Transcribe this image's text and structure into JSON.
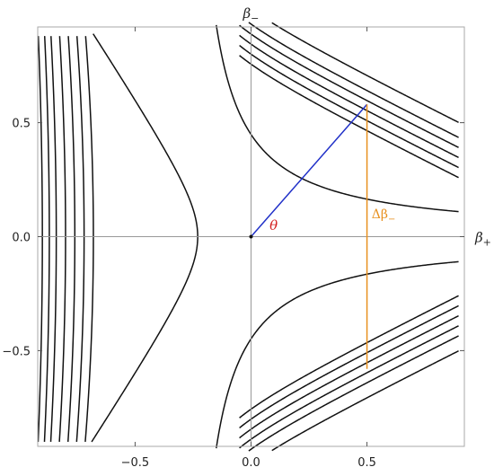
{
  "chart_data": {
    "type": "line",
    "title": "",
    "xlabel": {
      "main": "β",
      "sub": "+"
    },
    "ylabel": {
      "main": "β",
      "sub": "−"
    },
    "xlim": [
      -0.92,
      0.92
    ],
    "ylim": [
      -0.92,
      0.92
    ],
    "x_ticks": [
      {
        "value": -0.5,
        "label": "−0.5"
      },
      {
        "value": 0.0,
        "label": "0.0"
      },
      {
        "value": 0.5,
        "label": "0.5"
      }
    ],
    "y_ticks": [
      {
        "value": 0.5,
        "label": "0.5"
      },
      {
        "value": 0.0,
        "label": "0.0"
      },
      {
        "value": -0.5,
        "label": "−0.5"
      }
    ],
    "grid": false,
    "legend": "none",
    "contours": {
      "description_function": "level sets of a hyperbola-like potential",
      "right_family_levels": [
        0.1,
        0.12,
        0.14,
        0.16,
        0.18,
        0.21
      ],
      "center_level": 0.0,
      "left_levels": [
        -0.23
      ],
      "far_left_x": [
        -0.68,
        -0.72,
        -0.76,
        -0.8,
        -0.84,
        -0.87,
        -0.9
      ]
    },
    "segments": [
      {
        "name": "radius",
        "from": [
          0.0,
          0.0
        ],
        "to": [
          0.5,
          0.58
        ],
        "color": "#2030c8"
      },
      {
        "name": "delta-beta",
        "from": [
          0.5,
          0.58
        ],
        "to": [
          0.5,
          -0.58
        ],
        "color": "#e8901e"
      }
    ],
    "annotations": [
      {
        "name": "theta",
        "text": "θ",
        "at": [
          0.08,
          0.03
        ],
        "color": "#d42020"
      },
      {
        "name": "delta-beta-minus",
        "text_main": "Δβ",
        "text_sub": "−",
        "at": [
          0.52,
          0.08
        ],
        "color": "#e8901e"
      }
    ],
    "origin_point": [
      0.0,
      0.0
    ],
    "colors": {
      "curve": "#111111",
      "axis": "#999999",
      "frame": "#aaaaaa"
    }
  }
}
